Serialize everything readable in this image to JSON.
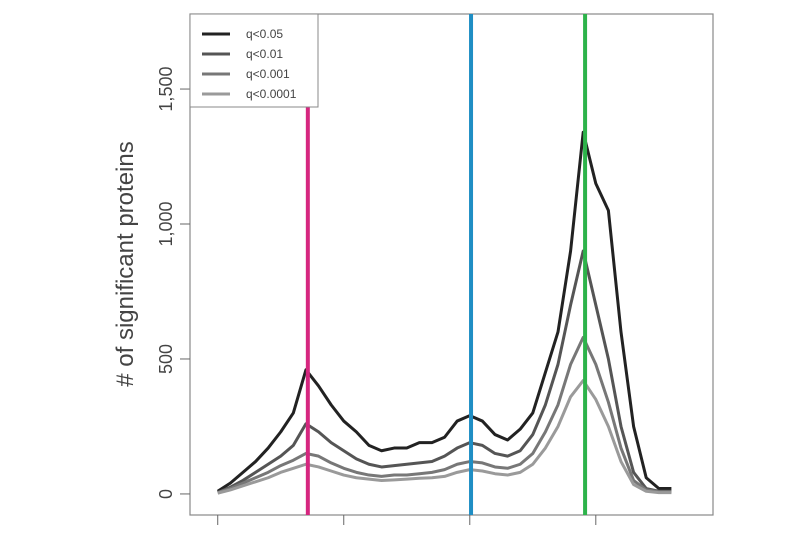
{
  "chart_data": {
    "type": "line",
    "y_label": "# of significant proteins",
    "x": [
      20,
      22,
      24,
      26,
      28,
      30,
      32,
      34,
      36,
      38,
      40,
      42,
      44,
      46,
      48,
      50,
      52,
      54,
      56,
      58,
      60,
      62,
      64,
      66,
      68,
      70,
      72,
      74,
      76,
      78,
      80,
      82,
      84,
      86,
      88,
      90,
      92
    ],
    "series": [
      {
        "name": "q<0.05",
        "color": "#222222",
        "values": [
          10,
          40,
          80,
          120,
          170,
          230,
          300,
          460,
          400,
          330,
          270,
          230,
          180,
          160,
          170,
          170,
          190,
          190,
          210,
          270,
          290,
          270,
          220,
          200,
          240,
          300,
          450,
          600,
          900,
          1340,
          1150,
          1050,
          600,
          250,
          60,
          20,
          20
        ]
      },
      {
        "name": "q<0.01",
        "color": "#555555",
        "values": [
          5,
          25,
          50,
          80,
          110,
          140,
          180,
          260,
          230,
          190,
          160,
          130,
          110,
          100,
          105,
          110,
          115,
          120,
          140,
          170,
          190,
          180,
          150,
          140,
          160,
          220,
          330,
          480,
          700,
          900,
          700,
          500,
          250,
          80,
          20,
          10,
          10
        ]
      },
      {
        "name": "q<0.001",
        "color": "#777777",
        "values": [
          5,
          20,
          40,
          60,
          80,
          105,
          125,
          150,
          140,
          115,
          95,
          80,
          70,
          65,
          70,
          70,
          75,
          80,
          90,
          110,
          120,
          115,
          100,
          95,
          110,
          150,
          230,
          330,
          480,
          580,
          480,
          340,
          170,
          50,
          15,
          8,
          8
        ]
      },
      {
        "name": "q<0.0001",
        "color": "#9a9a9a",
        "values": [
          3,
          15,
          30,
          45,
          60,
          80,
          95,
          110,
          100,
          85,
          70,
          60,
          55,
          50,
          52,
          55,
          58,
          60,
          65,
          80,
          90,
          85,
          75,
          70,
          80,
          110,
          170,
          250,
          360,
          420,
          350,
          250,
          120,
          35,
          10,
          5,
          5
        ]
      }
    ],
    "vlines": [
      {
        "x": 34.3,
        "color": "#d6267f"
      },
      {
        "x": 60.2,
        "color": "#1f8ec4"
      },
      {
        "x": 78.3,
        "color": "#2db34a"
      }
    ],
    "xlim": [
      15.6,
      98.6
    ],
    "xticks": [
      20,
      40,
      60,
      80
    ],
    "ylim": [
      -78,
      1778
    ],
    "yticks": [
      0,
      {
        "value": 500,
        "label": "500"
      },
      {
        "value": 1000,
        "label": "1,000"
      },
      {
        "value": 1500,
        "label": "1,500"
      }
    ],
    "legend": "top-left"
  }
}
